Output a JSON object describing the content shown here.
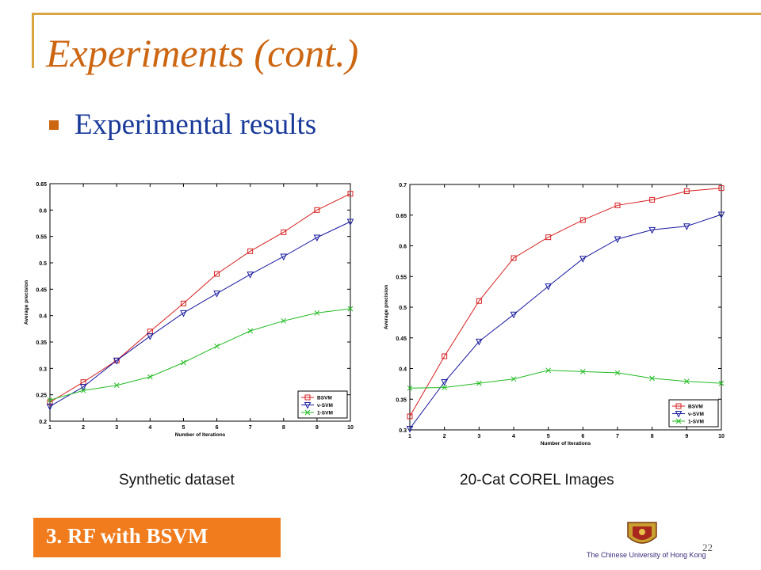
{
  "slide": {
    "title": "Experiments (cont.)",
    "bullet": "Experimental results",
    "section_label": "3. RF  with BSVM",
    "page_number": "22",
    "university": "The Chinese University of Hong Kong",
    "accent_color": "#cc6611",
    "bullet_text_color": "#1a3a9a",
    "section_box_color": "#f07c1e",
    "logo_icon": "cuhk-crest-icon"
  },
  "chart_data": [
    {
      "type": "line",
      "caption": "Synthetic dataset",
      "xlabel": "Number of Iterations",
      "ylabel": "Average precision",
      "x": [
        1,
        2,
        3,
        4,
        5,
        6,
        7,
        8,
        9,
        10
      ],
      "xlim": [
        1,
        10
      ],
      "ylim": [
        0.2,
        0.65
      ],
      "yticks": [
        "0.2",
        "0.25",
        "0.3",
        "0.35",
        "0.4",
        "0.45",
        "0.5",
        "0.55",
        "0.6",
        "0.65"
      ],
      "xticks": [
        "1",
        "2",
        "3",
        "4",
        "5",
        "6",
        "7",
        "8",
        "9",
        "10"
      ],
      "legend_position": "bottom-right",
      "series": [
        {
          "name": "BSVM",
          "color": "#d62020",
          "marker": "square",
          "values": [
            0.236,
            0.274,
            0.315,
            0.37,
            0.423,
            0.479,
            0.522,
            0.558,
            0.6,
            0.631
          ]
        },
        {
          "name": "ν-SVM",
          "color": "#1a1aa0",
          "marker": "triangle-down",
          "values": [
            0.228,
            0.265,
            0.315,
            0.361,
            0.405,
            0.442,
            0.478,
            0.512,
            0.548,
            0.578
          ]
        },
        {
          "name": "1-SVM",
          "color": "#22bb22",
          "marker": "x",
          "values": [
            0.24,
            0.258,
            0.268,
            0.284,
            0.311,
            0.342,
            0.371,
            0.39,
            0.405,
            0.413
          ]
        }
      ]
    },
    {
      "type": "line",
      "caption": "20-Cat COREL Images",
      "xlabel": "Number of Iterations",
      "ylabel": "Average precision",
      "x": [
        1,
        2,
        3,
        4,
        5,
        6,
        7,
        8,
        9,
        10
      ],
      "xlim": [
        1,
        10
      ],
      "ylim": [
        0.3,
        0.7
      ],
      "yticks": [
        "0.3",
        "0.35",
        "0.4",
        "0.45",
        "0.5",
        "0.55",
        "0.6",
        "0.65",
        "0.7"
      ],
      "xticks": [
        "1",
        "2",
        "3",
        "4",
        "5",
        "6",
        "7",
        "8",
        "9",
        "10"
      ],
      "legend_position": "bottom-right",
      "series": [
        {
          "name": "BSVM",
          "color": "#d62020",
          "marker": "square",
          "values": [
            0.322,
            0.42,
            0.51,
            0.58,
            0.614,
            0.642,
            0.666,
            0.675,
            0.689,
            0.694
          ]
        },
        {
          "name": "ν-SVM",
          "color": "#1a1aa0",
          "marker": "triangle-down",
          "values": [
            0.302,
            0.378,
            0.444,
            0.488,
            0.534,
            0.579,
            0.611,
            0.626,
            0.632,
            0.651
          ]
        },
        {
          "name": "1-SVM",
          "color": "#22bb22",
          "marker": "x",
          "values": [
            0.368,
            0.369,
            0.376,
            0.383,
            0.397,
            0.395,
            0.393,
            0.384,
            0.379,
            0.376
          ]
        }
      ]
    }
  ]
}
